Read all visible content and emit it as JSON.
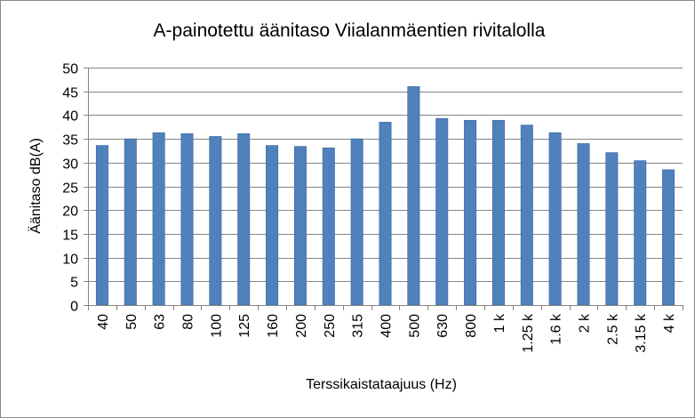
{
  "chart_data": {
    "type": "bar",
    "title": "A-painotettu äänitaso Viialanmäentien rivitalolla",
    "xlabel": "Terssikaistataajuus (Hz)",
    "ylabel": "Äänitaso dB(A)",
    "categories": [
      "40",
      "50",
      "63",
      "80",
      "100",
      "125",
      "160",
      "200",
      "250",
      "315",
      "400",
      "500",
      "630",
      "800",
      "1 k",
      "1.25 k",
      "1.6 k",
      "2 k",
      "2.5 k",
      "3.15 k",
      "4 k"
    ],
    "values": [
      33.6,
      35.0,
      36.3,
      36.1,
      35.5,
      36.1,
      33.6,
      33.4,
      33.1,
      35.0,
      38.5,
      46.0,
      39.3,
      38.9,
      38.9,
      37.9,
      36.3,
      34.0,
      32.1,
      30.4,
      28.5
    ],
    "ylim": [
      0,
      50
    ],
    "yticks": [
      0,
      5,
      10,
      15,
      20,
      25,
      30,
      35,
      40,
      45,
      50
    ],
    "grid": true,
    "legend": "none",
    "colors": {
      "bar": "#4f81bd",
      "bar_edge": "#3a6596",
      "grid": "#868686",
      "axis": "#868686"
    }
  }
}
